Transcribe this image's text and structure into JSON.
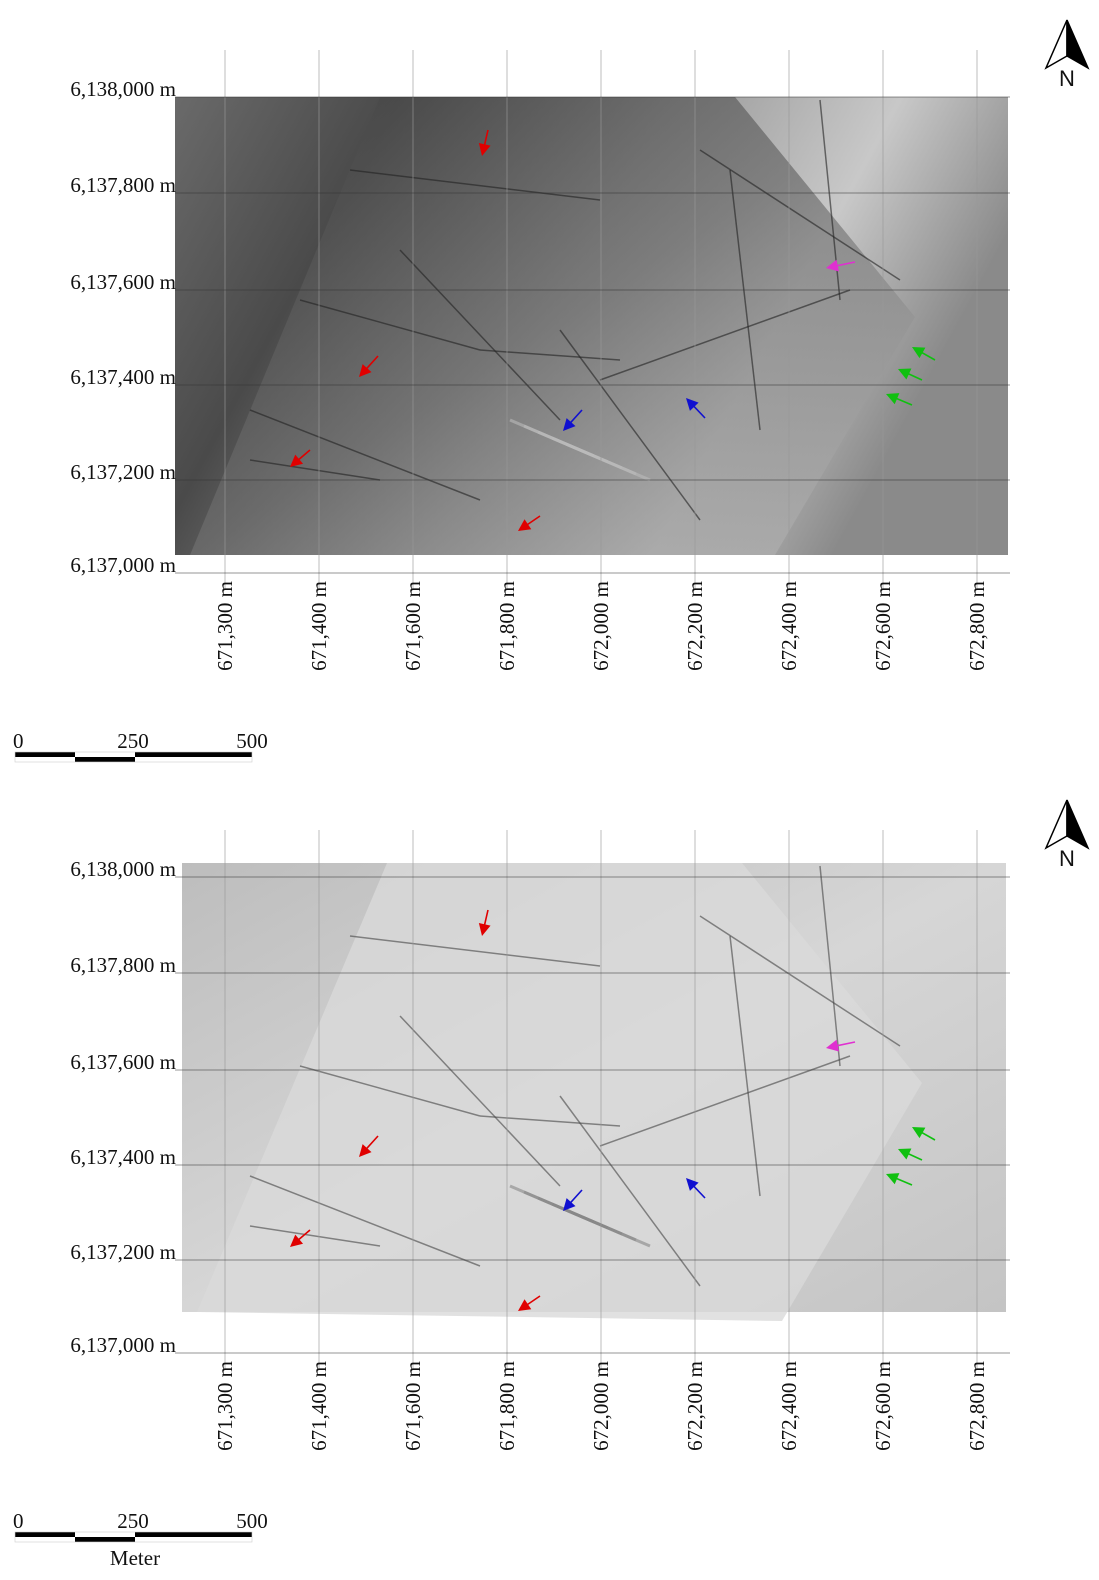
{
  "panels": [
    {
      "y_labels": [
        "6,138,000 m",
        "6,137,800 m",
        "6,137,600 m",
        "6,137,400 m",
        "6,137,200 m",
        "6,137,000 m"
      ],
      "x_labels": [
        "671,300 m",
        "671,400 m",
        "671,600 m",
        "671,800 m",
        "672,000 m",
        "672,200 m",
        "672,400 m",
        "672,600 m",
        "672,800 m"
      ],
      "scale_labels": [
        "0",
        "250",
        "500"
      ],
      "north": "N"
    },
    {
      "y_labels": [
        "6,138,000 m",
        "6,137,800 m",
        "6,137,600 m",
        "6,137,400 m",
        "6,137,200 m",
        "6,137,000 m"
      ],
      "x_labels": [
        "671,300 m",
        "671,400 m",
        "671,600 m",
        "671,800 m",
        "672,000 m",
        "672,200 m",
        "672,400 m",
        "672,600 m",
        "672,800 m"
      ],
      "scale_labels": [
        "0",
        "250",
        "500"
      ],
      "north": "N",
      "scale_unit": "Meter"
    }
  ]
}
